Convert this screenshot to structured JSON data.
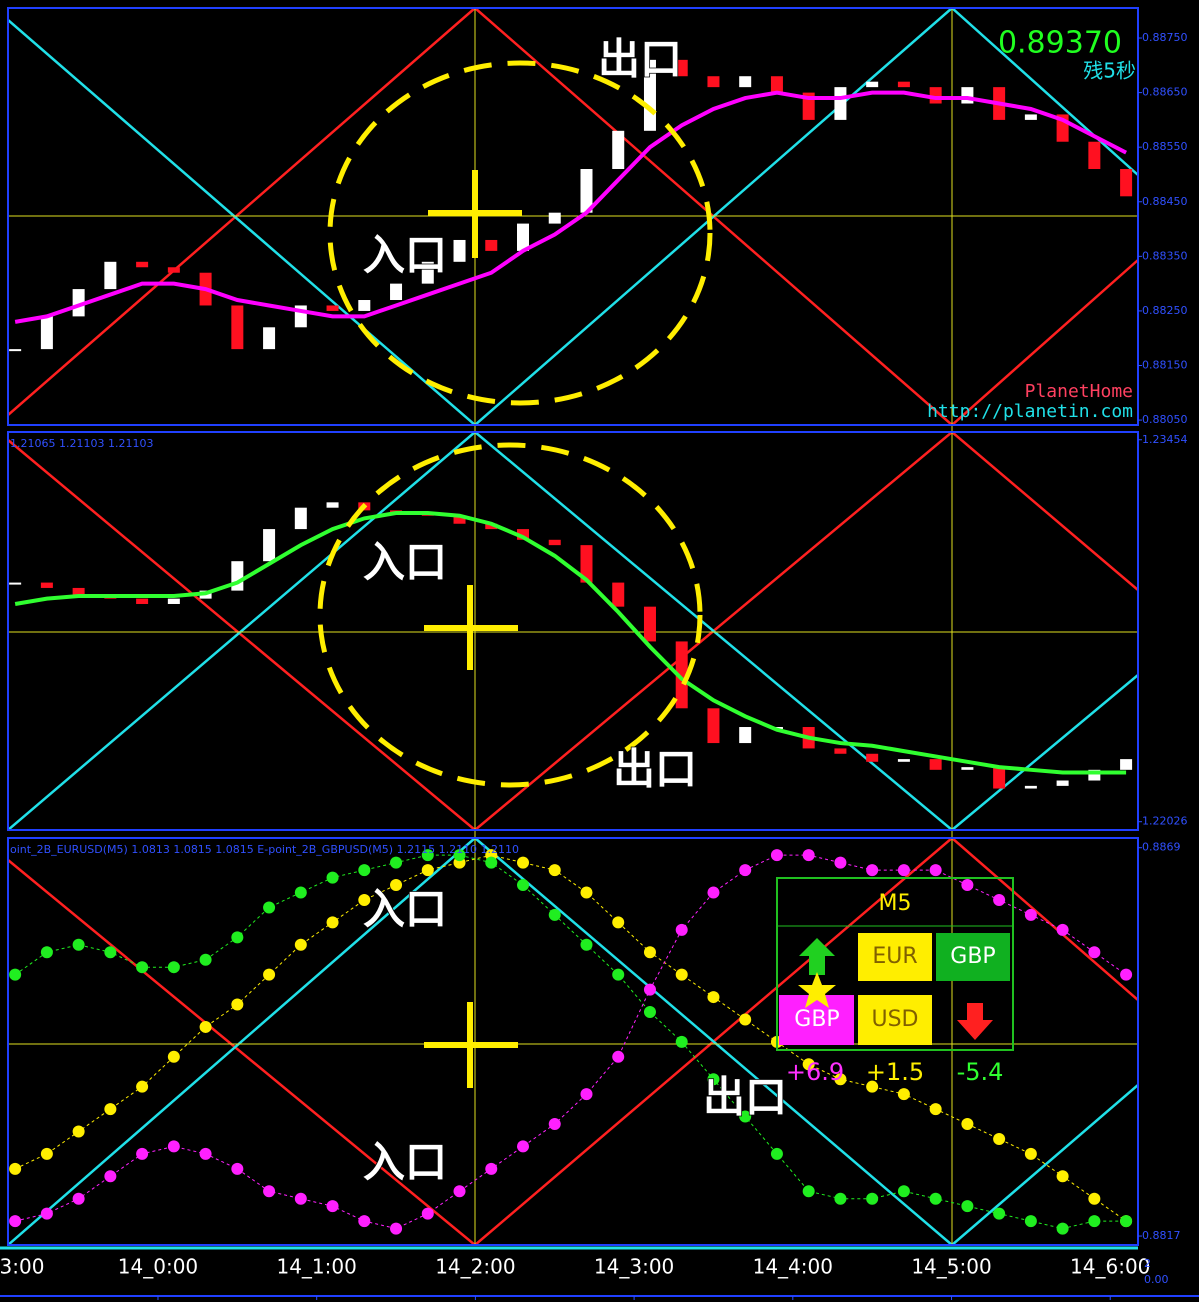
{
  "chart_data": [
    {
      "type": "candlestick",
      "xlim": [
        -0.945,
        6.175
      ],
      "ylim": [
        0.88041,
        0.88805
      ],
      "yticks": [
        {
          "value": 0.8875,
          "label": "0.88750"
        },
        {
          "value": 0.8865,
          "label": "0.88650"
        },
        {
          "value": 0.8855,
          "label": "0.88550"
        },
        {
          "value": 0.8845,
          "label": "0.88450"
        },
        {
          "value": 0.8835,
          "label": "0.88350"
        },
        {
          "value": 0.8825,
          "label": "0.88250"
        },
        {
          "value": 0.8815,
          "label": "0.88150"
        },
        {
          "value": 0.8805,
          "label": "0.88050"
        }
      ],
      "x": [
        -0.9,
        -0.7,
        -0.5,
        -0.3,
        -0.1,
        0.1,
        0.3,
        0.5,
        0.7,
        0.9,
        1.1,
        1.3,
        1.5,
        1.7,
        1.9,
        2.1,
        2.3,
        2.5,
        2.7,
        2.9,
        3.1,
        3.3,
        3.5,
        3.7,
        3.9,
        4.1,
        4.3,
        4.5,
        4.7,
        4.9,
        5.1,
        5.3,
        5.5,
        5.7,
        5.9,
        6.1
      ],
      "close": [
        0.8818,
        0.8824,
        0.8829,
        0.8834,
        0.8833,
        0.8832,
        0.8826,
        0.8818,
        0.8822,
        0.8826,
        0.8825,
        0.8827,
        0.883,
        0.8834,
        0.8838,
        0.8836,
        0.8841,
        0.8843,
        0.8851,
        0.8858,
        0.8871,
        0.8868,
        0.8866,
        0.8868,
        0.8865,
        0.886,
        0.8866,
        0.8867,
        0.8866,
        0.8863,
        0.8866,
        0.886,
        0.8861,
        0.8856,
        0.8851,
        0.8846
      ],
      "ma": [
        0.8823,
        0.8824,
        0.8826,
        0.8828,
        0.883,
        0.883,
        0.8829,
        0.8827,
        0.8826,
        0.8825,
        0.8824,
        0.8824,
        0.8826,
        0.8828,
        0.883,
        0.8832,
        0.8836,
        0.8839,
        0.8843,
        0.8849,
        0.8855,
        0.8859,
        0.8862,
        0.8864,
        0.8865,
        0.8864,
        0.8864,
        0.8865,
        0.8865,
        0.8864,
        0.8864,
        0.8863,
        0.8862,
        0.886,
        0.8857,
        0.8854
      ],
      "ma_color": "#ff00ff",
      "up_color": "#ffffff",
      "down_color": "#ff1020",
      "price_label": "0.89370",
      "timer": "残5秒",
      "brand": "PlanetHome",
      "url": "http://planetin.com",
      "labels": [
        "入口",
        "出口"
      ]
    },
    {
      "type": "candlestick",
      "xlim": [
        -0.945,
        6.175
      ],
      "ylim": [
        1.21995,
        1.23483
      ],
      "header": "1.21065 1.21103 1.21103",
      "yticks": [
        1.23454,
        1.22026
      ],
      "x": [
        -0.9,
        -0.7,
        -0.5,
        -0.3,
        -0.1,
        0.1,
        0.3,
        0.5,
        0.7,
        0.9,
        1.1,
        1.3,
        1.5,
        1.7,
        1.9,
        2.1,
        2.3,
        2.5,
        2.7,
        2.9,
        3.1,
        3.3,
        3.5,
        3.7,
        3.9,
        4.1,
        4.3,
        4.5,
        4.7,
        4.9,
        5.1,
        5.3,
        5.5,
        5.7,
        5.9,
        6.1
      ],
      "close": [
        1.2292,
        1.229,
        1.2287,
        1.2286,
        1.2284,
        1.2286,
        1.2289,
        1.23,
        1.2312,
        1.232,
        1.2322,
        1.2319,
        1.2318,
        1.2317,
        1.2314,
        1.2312,
        1.2308,
        1.2306,
        1.2292,
        1.2283,
        1.227,
        1.2245,
        1.2232,
        1.2238,
        1.2238,
        1.223,
        1.2228,
        1.2225,
        1.2226,
        1.2222,
        1.2223,
        1.2215,
        1.2216,
        1.2218,
        1.2222,
        1.2226
      ],
      "ma": [
        1.2284,
        1.2286,
        1.2287,
        1.2287,
        1.2287,
        1.2287,
        1.2288,
        1.2292,
        1.2299,
        1.2306,
        1.2312,
        1.2316,
        1.2318,
        1.2318,
        1.2317,
        1.2314,
        1.2309,
        1.2302,
        1.2293,
        1.2281,
        1.2268,
        1.2256,
        1.2248,
        1.2242,
        1.2237,
        1.2234,
        1.2232,
        1.2231,
        1.2229,
        1.2227,
        1.2225,
        1.2223,
        1.2222,
        1.2221,
        1.2221,
        1.2221
      ],
      "ma_color": "#30ff30",
      "up_color": "#ffffff",
      "down_color": "#ff1020",
      "labels": [
        "入口",
        "出口"
      ]
    },
    {
      "type": "scatter",
      "xlim": [
        -0.945,
        6.175
      ],
      "ylim": [
        0.88158,
        0.88703
      ],
      "header": "oint_2B_EURUSD(M5) 1.0813 1.0815 1.0815  E-point_2B_GBPUSD(M5) 1.2115 1.2110 1.2110",
      "yticks": [
        0.8869,
        0.8817
      ],
      "xticks": [
        {
          "value": -1,
          "label": "3:00"
        },
        {
          "value": 0,
          "label": "14_0:00"
        },
        {
          "value": 1,
          "label": "14_1:00"
        },
        {
          "value": 2,
          "label": "14_2:00"
        },
        {
          "value": 3,
          "label": "14_3:00"
        },
        {
          "value": 4,
          "label": "14_4:00"
        },
        {
          "value": 5,
          "label": "14_5:00"
        },
        {
          "value": 6,
          "label": "14_6:00"
        }
      ],
      "extra_labels": [
        "2",
        "0.00"
      ],
      "x": [
        -0.9,
        -0.7,
        -0.5,
        -0.3,
        -0.1,
        0.1,
        0.3,
        0.5,
        0.7,
        0.9,
        1.1,
        1.3,
        1.5,
        1.7,
        1.9,
        2.1,
        2.3,
        2.5,
        2.7,
        2.9,
        3.1,
        3.3,
        3.5,
        3.7,
        3.9,
        4.1,
        4.3,
        4.5,
        4.7,
        4.9,
        5.1,
        5.3,
        5.5,
        5.7,
        5.9,
        6.1
      ],
      "series": [
        {
          "color": "#ffee00",
          "values": [
            0.8826,
            0.8828,
            0.8831,
            0.8834,
            0.8837,
            0.8841,
            0.8845,
            0.8848,
            0.8852,
            0.8856,
            0.8859,
            0.8862,
            0.8864,
            0.8866,
            0.8867,
            0.8868,
            0.8867,
            0.8866,
            0.8863,
            0.8859,
            0.8855,
            0.8852,
            0.8849,
            0.8846,
            0.8843,
            0.884,
            0.8838,
            0.8837,
            0.8836,
            0.8834,
            0.8832,
            0.883,
            0.8828,
            0.8825,
            0.8822,
            0.8819
          ]
        },
        {
          "color": "#20ee20",
          "values": [
            0.8852,
            0.8855,
            0.8856,
            0.8855,
            0.8853,
            0.8853,
            0.8854,
            0.8857,
            0.8861,
            0.8863,
            0.8865,
            0.8866,
            0.8867,
            0.8868,
            0.8868,
            0.8867,
            0.8864,
            0.886,
            0.8856,
            0.8852,
            0.8847,
            0.8843,
            0.8838,
            0.8833,
            0.8828,
            0.8823,
            0.8822,
            0.8822,
            0.8823,
            0.8822,
            0.8821,
            0.882,
            0.8819,
            0.8818,
            0.8819,
            0.8819
          ]
        },
        {
          "color": "#ff20ff",
          "values": [
            0.8819,
            0.882,
            0.8822,
            0.8825,
            0.8828,
            0.8829,
            0.8828,
            0.8826,
            0.8823,
            0.8822,
            0.8821,
            0.8819,
            0.8818,
            0.882,
            0.8823,
            0.8826,
            0.8829,
            0.8832,
            0.8836,
            0.8841,
            0.885,
            0.8858,
            0.8863,
            0.8866,
            0.8868,
            0.8868,
            0.8867,
            0.8866,
            0.8866,
            0.8866,
            0.8864,
            0.8862,
            0.886,
            0.8858,
            0.8855,
            0.8852
          ]
        }
      ],
      "labels": [
        "入口",
        "出口",
        "入口"
      ],
      "box": {
        "title": "M5",
        "cells": [
          "EUR",
          "GBP",
          "GBP",
          "USD"
        ],
        "scores": [
          "+6.9",
          "+1.5",
          "-5.4"
        ]
      }
    }
  ]
}
